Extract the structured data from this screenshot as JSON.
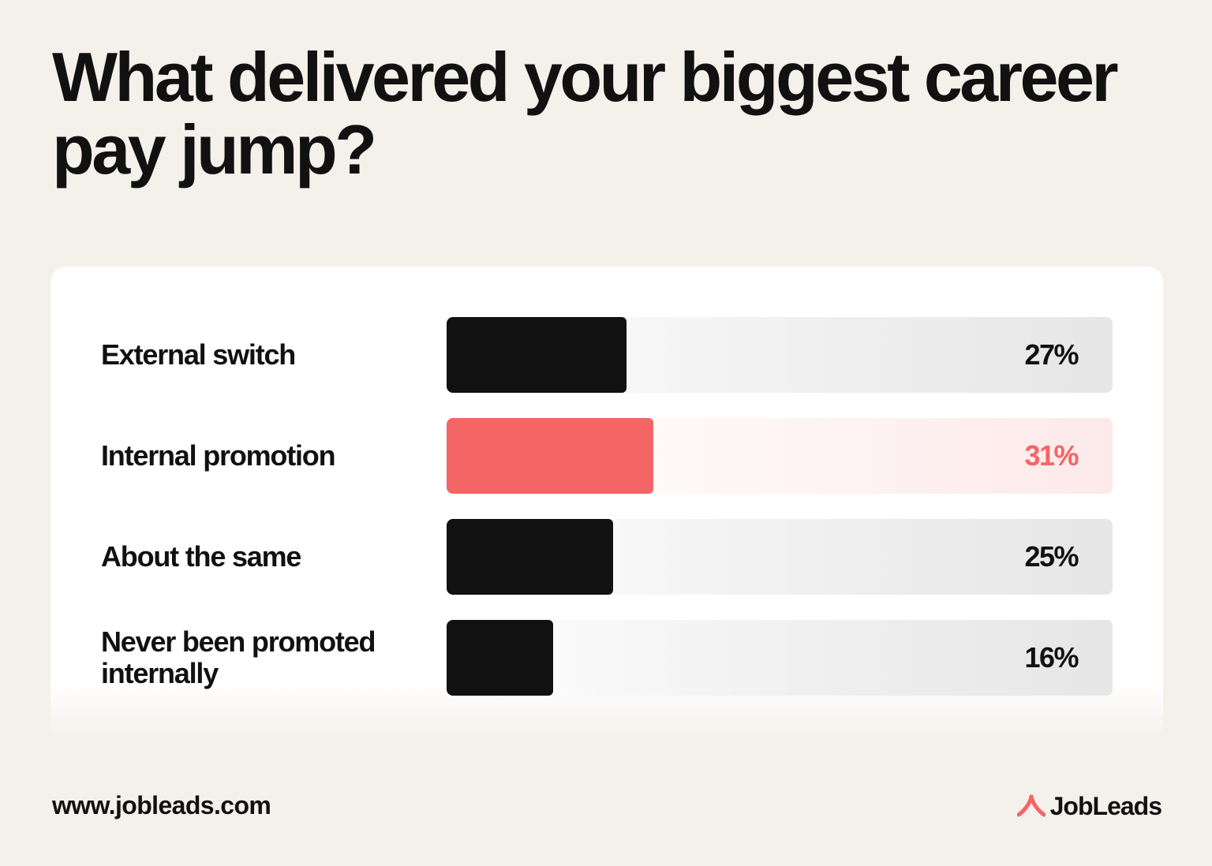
{
  "title": "What delivered your biggest career pay jump?",
  "colors": {
    "bar": "#111111",
    "highlight": "#f46565"
  },
  "chart_data": {
    "type": "bar",
    "orientation": "horizontal",
    "categories": [
      "External switch",
      "Internal promotion",
      "About the same",
      "Never been promoted internally"
    ],
    "values": [
      27,
      31,
      25,
      16
    ],
    "value_labels": [
      "27%",
      "31%",
      "25%",
      "16%"
    ],
    "unit": "%",
    "highlighted_category": "Internal promotion",
    "xlim": [
      0,
      100
    ],
    "title": "What delivered your biggest career pay jump?"
  },
  "footer": {
    "url": "www.jobleads.com",
    "logo_text": "JobLeads",
    "logo_icon": "jobleads-logo-icon"
  }
}
